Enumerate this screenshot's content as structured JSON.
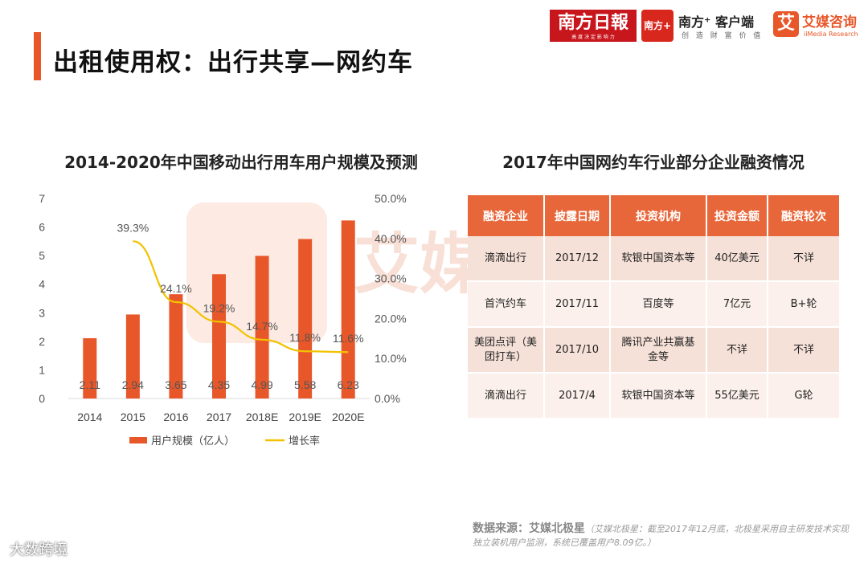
{
  "page": {
    "title": "出租使用权：出行共享—网约车"
  },
  "logos": {
    "nanfang_daily": "南方日報",
    "nanfang_daily_sub": "高 度 决 定 影 响 力",
    "nanfang_plus_badge": "南方+",
    "nanfang_plus": "南方⁺ 客户端",
    "nanfang_plus_sub": "创 造 财 富 价 值",
    "ai_icon": "艾",
    "ai_media": "艾媒咨询",
    "ai_media_sub": "iiMedia Research"
  },
  "watermark": "艾媒",
  "chart_title": "2014-2020年中国移动出行用车用户规模及预测",
  "chart_data": {
    "type": "bar",
    "title": "2014-2020年中国移动出行用车用户规模及预测",
    "categories": [
      "2014",
      "2015",
      "2016",
      "2017",
      "2018E",
      "2019E",
      "2020E"
    ],
    "series": [
      {
        "name": "用户规模（亿人）",
        "type": "bar",
        "axis": "left",
        "values": [
          2.11,
          2.94,
          3.65,
          4.35,
          4.99,
          5.58,
          6.23
        ],
        "labels": [
          "2.11",
          "2.94",
          "3.65",
          "4.35",
          "4.99",
          "5.58",
          "6.23"
        ]
      },
      {
        "name": "增长率",
        "type": "line",
        "axis": "right",
        "values": [
          null,
          39.3,
          24.1,
          19.2,
          14.7,
          11.8,
          11.6
        ],
        "labels": [
          "",
          "39.3%",
          "24.1%",
          "19.2%",
          "14.7%",
          "11.8%",
          "11.6%"
        ]
      }
    ],
    "y_left": {
      "min": 0,
      "max": 7,
      "ticks": [
        "0",
        "1",
        "2",
        "3",
        "4",
        "5",
        "6",
        "7"
      ]
    },
    "y_right": {
      "min": 0,
      "max": 50,
      "ticks": [
        "0.0%",
        "10.0%",
        "20.0%",
        "30.0%",
        "40.0%",
        "50.0%"
      ]
    },
    "legend_position": "bottom",
    "colors": {
      "bar": "#e8572a",
      "line": "#f2c200"
    }
  },
  "table_title": "2017年中国网约车行业部分企业融资情况",
  "table": {
    "headers": [
      "融资企业",
      "披露日期",
      "投资机构",
      "投资金额",
      "融资轮次"
    ],
    "rows": [
      [
        "滴滴出行",
        "2017/12",
        "软银中国资本等",
        "40亿美元",
        "不详"
      ],
      [
        "首汽约车",
        "2017/11",
        "百度等",
        "7亿元",
        "B+轮"
      ],
      [
        "美团点评（美团打车）",
        "2017/10",
        "腾讯产业共赢基金等",
        "不详",
        "不详"
      ],
      [
        "滴滴出行",
        "2017/4",
        "软银中国资本等",
        "55亿美元",
        "G轮"
      ]
    ]
  },
  "source": {
    "label": "数据来源：艾媒北极星",
    "note": "（艾媒北极星：截至2017年12月底，北极星采用自主研发技术实现独立装机用户监测，系统已覆盖用户8.09亿。）"
  },
  "brand": "大数跨境",
  "colors": {
    "accent": "#e8572a",
    "header": "#e8673a",
    "row_odd": "#f6e1d8",
    "row_even": "#fbf0eb"
  }
}
